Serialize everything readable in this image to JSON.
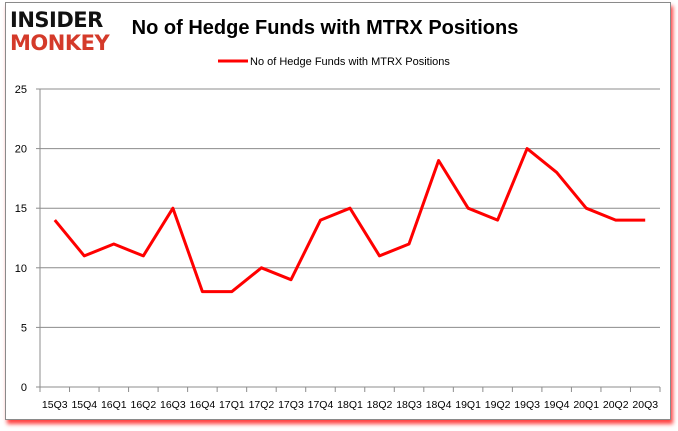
{
  "logo": {
    "line1": "INSIDER",
    "line2": "MONKEY"
  },
  "chart_data": {
    "type": "line",
    "title": "No of Hedge Funds with MTRX Positions",
    "xlabel": "",
    "ylabel": "",
    "categories": [
      "15Q3",
      "15Q4",
      "16Q1",
      "16Q2",
      "16Q3",
      "16Q4",
      "17Q1",
      "17Q2",
      "17Q3",
      "17Q4",
      "18Q1",
      "18Q2",
      "18Q3",
      "18Q4",
      "19Q1",
      "19Q2",
      "19Q3",
      "19Q4",
      "20Q1",
      "20Q2",
      "20Q3"
    ],
    "series": [
      {
        "name": "No of Hedge Funds with MTRX Positions",
        "color": "#ff0000",
        "values": [
          14,
          11,
          12,
          11,
          15,
          8,
          8,
          10,
          9,
          14,
          15,
          11,
          12,
          19,
          15,
          14,
          20,
          18,
          15,
          14,
          14
        ]
      }
    ],
    "ylim": [
      0,
      25
    ],
    "yticks": [
      0,
      5,
      10,
      15,
      20,
      25
    ],
    "grid": true,
    "legend": "top-center"
  }
}
